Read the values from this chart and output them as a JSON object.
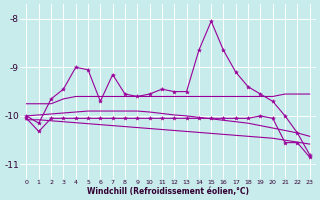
{
  "x": [
    0,
    1,
    2,
    3,
    4,
    5,
    6,
    7,
    8,
    9,
    10,
    11,
    12,
    13,
    14,
    15,
    16,
    17,
    18,
    19,
    20,
    21,
    22,
    23
  ],
  "line_upper_zigzag": [
    -10.0,
    -10.15,
    -9.65,
    -9.45,
    -9.0,
    -9.05,
    -9.7,
    -9.15,
    -9.55,
    -9.6,
    -9.55,
    -9.45,
    -9.5,
    -9.5,
    -8.65,
    -8.05,
    -8.65,
    -9.1,
    -9.4,
    -9.55,
    -9.7,
    -10.0,
    -10.35,
    -10.8
  ],
  "line_mid_rise": [
    -9.75,
    -9.75,
    -9.75,
    -9.65,
    -9.6,
    -9.6,
    -9.6,
    -9.6,
    -9.6,
    -9.6,
    -9.6,
    -9.6,
    -9.6,
    -9.6,
    -9.6,
    -9.6,
    -9.6,
    -9.6,
    -9.6,
    -9.6,
    -9.6,
    -9.55,
    -9.55,
    -9.55
  ],
  "line_slope1": [
    -10.0,
    -9.98,
    -9.96,
    -9.94,
    -9.92,
    -9.9,
    -9.9,
    -9.9,
    -9.9,
    -9.9,
    -9.92,
    -9.95,
    -9.98,
    -10.0,
    -10.03,
    -10.06,
    -10.09,
    -10.12,
    -10.15,
    -10.2,
    -10.25,
    -10.3,
    -10.35,
    -10.42
  ],
  "line_slope2": [
    -10.08,
    -10.08,
    -10.1,
    -10.12,
    -10.14,
    -10.16,
    -10.18,
    -10.2,
    -10.22,
    -10.24,
    -10.26,
    -10.28,
    -10.3,
    -10.32,
    -10.34,
    -10.36,
    -10.38,
    -10.4,
    -10.42,
    -10.44,
    -10.46,
    -10.5,
    -10.54,
    -10.58
  ],
  "line_lower_zigzag": [
    -10.05,
    -10.32,
    -10.05,
    -10.05,
    -10.05,
    -10.05,
    -10.05,
    -10.05,
    -10.05,
    -10.05,
    -10.05,
    -10.05,
    -10.05,
    -10.05,
    -10.05,
    -10.05,
    -10.05,
    -10.05,
    -10.05,
    -10.0,
    -10.05,
    -10.55,
    -10.55,
    -10.85
  ],
  "color": "#990099",
  "bg_color": "#c8ecec",
  "xlabel": "Windchill (Refroidissement éolien,°C)",
  "xlim": [
    -0.5,
    23.5
  ],
  "ylim": [
    -11.3,
    -7.7
  ],
  "yticks": [
    -11,
    -10,
    -9,
    -8
  ],
  "xticks": [
    0,
    1,
    2,
    3,
    4,
    5,
    6,
    7,
    8,
    9,
    10,
    11,
    12,
    13,
    14,
    15,
    16,
    17,
    18,
    19,
    20,
    21,
    22,
    23
  ]
}
